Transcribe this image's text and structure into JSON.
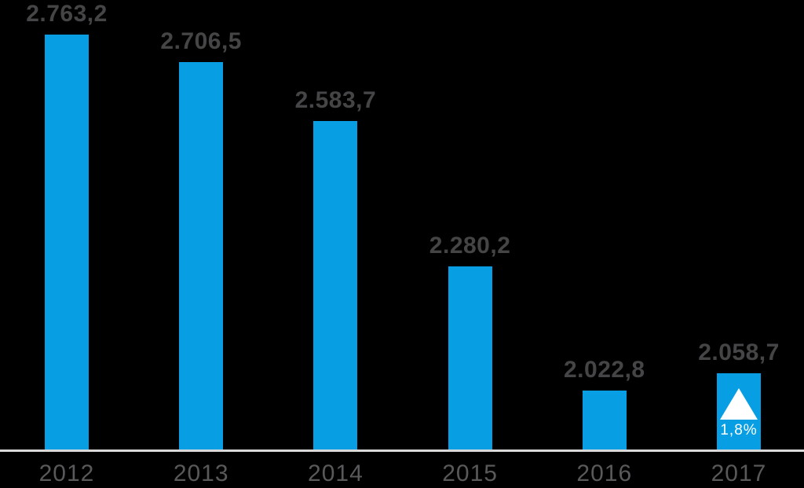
{
  "page": {
    "background": "#000000"
  },
  "chart_data": {
    "type": "bar",
    "categories": [
      "2012",
      "2013",
      "2014",
      "2015",
      "2016",
      "2017"
    ],
    "values": [
      2763.2,
      2706.5,
      2583.7,
      2280.2,
      2022.8,
      2058.7
    ],
    "value_labels": [
      "2.763,2",
      "2.706,5",
      "2.583,7",
      "2.280,2",
      "2.022,8",
      "2.058,7"
    ],
    "ylim": [
      1900,
      2763.2
    ],
    "grid": false,
    "legend": false,
    "bar_color": "#089ee3",
    "value_label_color": "#454547",
    "year_label_color": "#58595b",
    "baseline_color": "#d9d9d9",
    "annotation": {
      "category": "2017",
      "icon": "triangle-up-icon",
      "icon_color": "#ffffff",
      "label": "1,8%",
      "label_color": "#ffffff"
    }
  }
}
